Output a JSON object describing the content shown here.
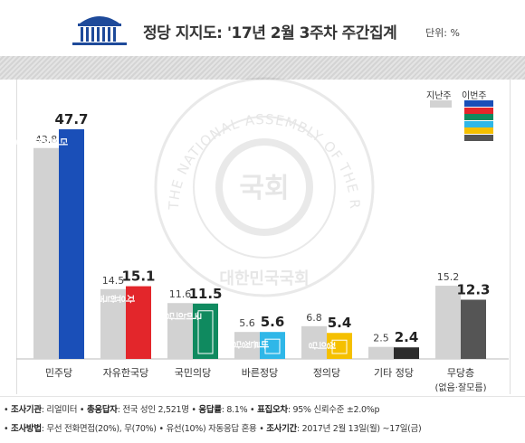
{
  "header": {
    "title": "정당 지지도: '17년 2월 3주차 주간집계",
    "unit": "단위: %"
  },
  "legend": {
    "previous_label": "지난주",
    "current_label": "이번주",
    "current_party_colors": [
      "#1a4fb8",
      "#e3262b",
      "#0f8a5f",
      "#2fb7e8",
      "#f5c000",
      "#555555"
    ]
  },
  "watermark": {
    "text": "THE NATIONAL ASSEMBLY OF THE REPUBLIC OF KOREA",
    "center_text": "국회",
    "bottom_text": "대한민국국회"
  },
  "chart_data": {
    "type": "bar",
    "categories": [
      "민주당",
      "자유한국당",
      "국민의당",
      "바른정당",
      "정의당",
      "기타 정당",
      "무당층"
    ],
    "category_sublabels": [
      "",
      "",
      "",
      "",
      "",
      "",
      "(없음·잘모름)"
    ],
    "series": [
      {
        "name": "지난주",
        "values": [
          43.8,
          14.5,
          11.6,
          5.6,
          6.8,
          2.5,
          15.2
        ],
        "color": "#d2d2d2"
      },
      {
        "name": "이번주",
        "values": [
          47.7,
          15.1,
          11.5,
          5.6,
          5.4,
          2.4,
          12.3
        ],
        "colors": [
          "#1a4fb8",
          "#e3262b",
          "#0f8a5f",
          "#2fb7e8",
          "#f5c000",
          "#2c2c2c",
          "#555555"
        ]
      }
    ],
    "party_logos": [
      "더불어민주당",
      "자유한국당",
      "국민의당",
      "바른정당",
      "정의당",
      "",
      ""
    ],
    "ylim": [
      0,
      50
    ],
    "grid": false
  },
  "footer": {
    "line1": [
      {
        "label": "조사기관",
        "text": ": 리얼미터"
      },
      {
        "label": "총응답자",
        "text": ": 전국 성인 2,521명"
      },
      {
        "label": "응답률",
        "text": ": 8.1%"
      },
      {
        "label": "표집오차",
        "text": ": 95% 신뢰수준 ±2.0%p"
      }
    ],
    "line2": [
      {
        "label": "조사방법",
        "text": ": 무선 전화면접(20%), 무(70%)"
      },
      {
        "label": "",
        "text": "유선(10%) 자동응답 혼용"
      },
      {
        "label": "조사기간",
        "text": ": 2017년 2월 13일(월) ~17일(금)"
      }
    ]
  }
}
